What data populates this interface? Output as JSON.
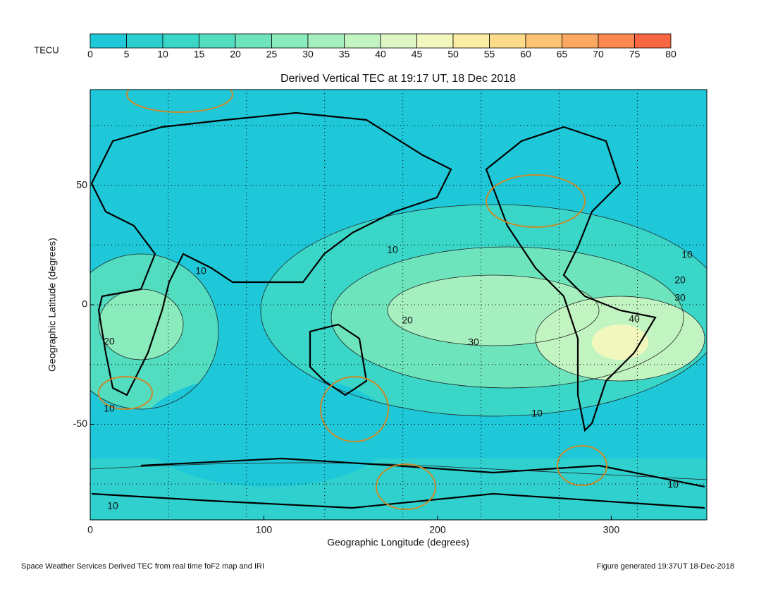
{
  "colorbar": {
    "label": "TECU",
    "ticks": [
      0,
      5,
      10,
      15,
      20,
      25,
      30,
      35,
      40,
      45,
      50,
      55,
      60,
      65,
      70,
      75,
      80
    ],
    "colors": [
      "#1ec8d8",
      "#2ccfd0",
      "#3ad6c8",
      "#52ddc0",
      "#6ee4bc",
      "#8aebbd",
      "#a6f0c0",
      "#c2f4c2",
      "#dcf7c4",
      "#f2f7be",
      "#fbeea2",
      "#fcdc8a",
      "#fcc474",
      "#fba862",
      "#fa8850",
      "#f86642"
    ]
  },
  "title": "Derived Vertical TEC at 19:17 UT, 18 Dec 2018",
  "x_axis": {
    "label": "Geographic Longitude (degrees)",
    "lim": [
      0,
      355
    ],
    "ticks": [
      0,
      100,
      200,
      300
    ]
  },
  "y_axis": {
    "label": "Geographic Latitude (degrees)",
    "lim": [
      -90,
      90
    ],
    "ticks": [
      50,
      0,
      -50
    ]
  },
  "contour_labels": [
    "10",
    "10",
    "10",
    "10",
    "10",
    "10",
    "10",
    "20",
    "20",
    "20",
    "30",
    "30",
    "40"
  ],
  "footer": {
    "left": "Space Weather Services Derived TEC from real time foF2 map and IRI",
    "right": "Figure generated 19:37UT 18-Dec-2018"
  }
}
